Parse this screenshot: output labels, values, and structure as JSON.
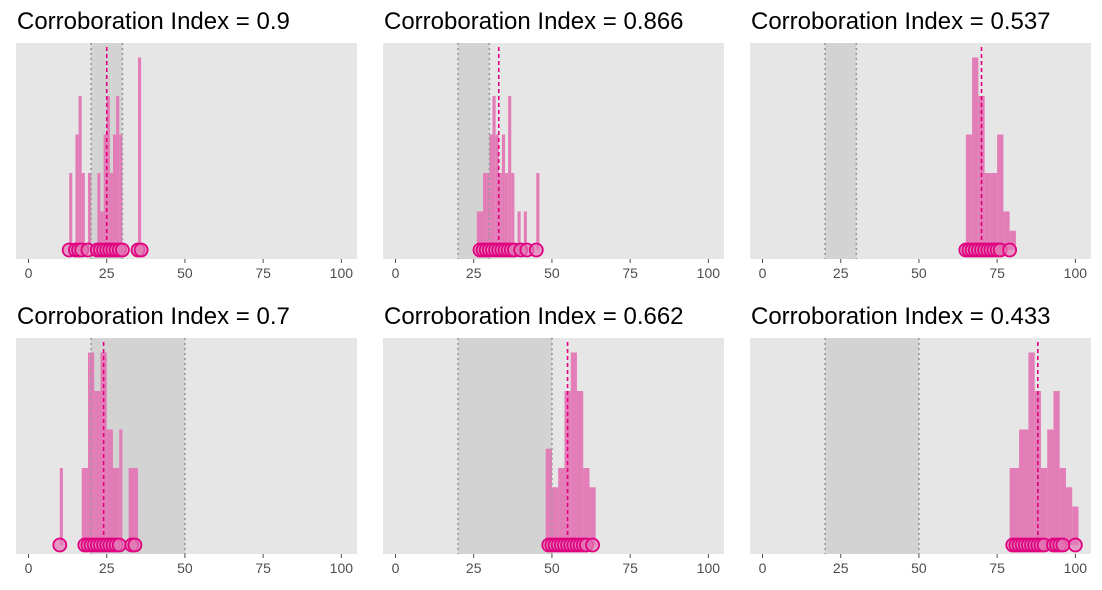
{
  "colors": {
    "panel_background": "#e6e6e6",
    "interval_band": "#d3d3d3",
    "interval_line": "#999999",
    "bar_fill": "#e377b5",
    "point_fill": "#e377b5",
    "point_stroke": "#e0007f",
    "mean_line": "#e0007f",
    "tick_color": "#4d4d4d"
  },
  "chart_data": [
    {
      "type": "histogram",
      "title": "Corroboration Index = 0.9",
      "xlim": [
        -4,
        105
      ],
      "x_ticks": [
        0,
        25,
        50,
        75,
        100
      ],
      "x_tick_labels": [
        "0",
        "25",
        "50",
        "75",
        "100"
      ],
      "grid": false,
      "interval": [
        20,
        30
      ],
      "mean": 25,
      "ylim": [
        0,
        10
      ],
      "bars": [
        {
          "x0": 13,
          "x1": 14,
          "count": 4
        },
        {
          "x0": 15,
          "x1": 16,
          "count": 6
        },
        {
          "x0": 16,
          "x1": 17,
          "count": 8
        },
        {
          "x0": 17,
          "x1": 18,
          "count": 4
        },
        {
          "x0": 19,
          "x1": 20,
          "count": 4
        },
        {
          "x0": 22,
          "x1": 23,
          "count": 4
        },
        {
          "x0": 23,
          "x1": 24,
          "count": 2
        },
        {
          "x0": 24,
          "x1": 25,
          "count": 6
        },
        {
          "x0": 25,
          "x1": 26,
          "count": 8
        },
        {
          "x0": 26,
          "x1": 27,
          "count": 4
        },
        {
          "x0": 27,
          "x1": 28,
          "count": 6
        },
        {
          "x0": 28,
          "x1": 29,
          "count": 8
        },
        {
          "x0": 29,
          "x1": 30,
          "count": 6
        },
        {
          "x0": 35,
          "x1": 36,
          "count": 10
        }
      ],
      "points": [
        13,
        15,
        16,
        17,
        19,
        22,
        23,
        24,
        25,
        26,
        27,
        28,
        29,
        30,
        35,
        36
      ]
    },
    {
      "type": "histogram",
      "title": "Corroboration Index = 0.866",
      "xlim": [
        -4,
        105
      ],
      "x_ticks": [
        0,
        25,
        50,
        75,
        100
      ],
      "x_tick_labels": [
        "0",
        "25",
        "50",
        "75",
        "100"
      ],
      "grid": false,
      "interval": [
        20,
        30
      ],
      "mean": 33,
      "ylim": [
        0,
        10
      ],
      "bars": [
        {
          "x0": 26,
          "x1": 27,
          "count": 2
        },
        {
          "x0": 27,
          "x1": 28,
          "count": 2
        },
        {
          "x0": 28,
          "x1": 29,
          "count": 4
        },
        {
          "x0": 29,
          "x1": 30,
          "count": 4
        },
        {
          "x0": 30,
          "x1": 31,
          "count": 6
        },
        {
          "x0": 31,
          "x1": 32,
          "count": 8
        },
        {
          "x0": 32,
          "x1": 33,
          "count": 6
        },
        {
          "x0": 33,
          "x1": 34,
          "count": 4
        },
        {
          "x0": 34,
          "x1": 35,
          "count": 6
        },
        {
          "x0": 35,
          "x1": 36,
          "count": 4
        },
        {
          "x0": 36,
          "x1": 37,
          "count": 8
        },
        {
          "x0": 37,
          "x1": 38,
          "count": 4
        },
        {
          "x0": 39,
          "x1": 40,
          "count": 2
        },
        {
          "x0": 41,
          "x1": 42,
          "count": 2
        },
        {
          "x0": 45,
          "x1": 46,
          "count": 4
        }
      ],
      "points": [
        27,
        28,
        29,
        30,
        31,
        32,
        33,
        34,
        35,
        36,
        37,
        38,
        40,
        42,
        45
      ]
    },
    {
      "type": "histogram",
      "title": "Corroboration Index = 0.537",
      "xlim": [
        -4,
        105
      ],
      "x_ticks": [
        0,
        25,
        50,
        75,
        100
      ],
      "x_tick_labels": [
        "0",
        "25",
        "50",
        "75",
        "100"
      ],
      "grid": false,
      "interval": [
        20,
        30
      ],
      "mean": 70,
      "ylim": [
        0,
        10
      ],
      "bars": [
        {
          "x0": 65,
          "x1": 67,
          "count": 6
        },
        {
          "x0": 67,
          "x1": 69,
          "count": 10
        },
        {
          "x0": 69,
          "x1": 71,
          "count": 8
        },
        {
          "x0": 71,
          "x1": 73,
          "count": 4
        },
        {
          "x0": 73,
          "x1": 75,
          "count": 4
        },
        {
          "x0": 75,
          "x1": 77,
          "count": 6
        },
        {
          "x0": 77,
          "x1": 79,
          "count": 2
        },
        {
          "x0": 79,
          "x1": 81,
          "count": 1
        }
      ],
      "points": [
        65,
        66,
        67,
        68,
        69,
        70,
        71,
        72,
        73,
        74,
        75,
        76,
        79
      ]
    },
    {
      "type": "histogram",
      "title": "Corroboration Index = 0.7",
      "xlim": [
        -4,
        105
      ],
      "x_ticks": [
        0,
        25,
        50,
        75,
        100
      ],
      "x_tick_labels": [
        "0",
        "25",
        "50",
        "75",
        "100"
      ],
      "grid": false,
      "interval": [
        20,
        50
      ],
      "mean": 24,
      "ylim": [
        0,
        10
      ],
      "bars": [
        {
          "x0": 10,
          "x1": 11,
          "count": 4
        },
        {
          "x0": 17,
          "x1": 19,
          "count": 4
        },
        {
          "x0": 19,
          "x1": 21,
          "count": 10
        },
        {
          "x0": 21,
          "x1": 23,
          "count": 8
        },
        {
          "x0": 23,
          "x1": 25,
          "count": 10
        },
        {
          "x0": 25,
          "x1": 27,
          "count": 6
        },
        {
          "x0": 27,
          "x1": 29,
          "count": 4
        },
        {
          "x0": 29,
          "x1": 30,
          "count": 6
        },
        {
          "x0": 32,
          "x1": 35,
          "count": 4
        }
      ],
      "points": [
        10,
        18,
        19,
        20,
        21,
        22,
        23,
        24,
        25,
        26,
        27,
        28,
        29,
        33,
        34
      ]
    },
    {
      "type": "histogram",
      "title": "Corroboration Index = 0.662",
      "xlim": [
        -4,
        105
      ],
      "x_ticks": [
        0,
        25,
        50,
        75,
        100
      ],
      "x_tick_labels": [
        "0",
        "25",
        "50",
        "75",
        "100"
      ],
      "grid": false,
      "interval": [
        20,
        50
      ],
      "mean": 55,
      "ylim": [
        0,
        10
      ],
      "bars": [
        {
          "x0": 48,
          "x1": 50,
          "count": 5
        },
        {
          "x0": 50,
          "x1": 52,
          "count": 3
        },
        {
          "x0": 52,
          "x1": 54,
          "count": 4
        },
        {
          "x0": 54,
          "x1": 56,
          "count": 8
        },
        {
          "x0": 56,
          "x1": 58,
          "count": 10
        },
        {
          "x0": 58,
          "x1": 60,
          "count": 8
        },
        {
          "x0": 60,
          "x1": 62,
          "count": 4
        },
        {
          "x0": 62,
          "x1": 64,
          "count": 3
        }
      ],
      "points": [
        49,
        50,
        51,
        52,
        53,
        54,
        55,
        56,
        57,
        58,
        59,
        60,
        61,
        63
      ]
    },
    {
      "type": "histogram",
      "title": "Corroboration Index = 0.433",
      "xlim": [
        -4,
        105
      ],
      "x_ticks": [
        0,
        25,
        50,
        75,
        100
      ],
      "x_tick_labels": [
        "0",
        "25",
        "50",
        "75",
        "100"
      ],
      "grid": false,
      "interval": [
        20,
        50
      ],
      "mean": 88,
      "ylim": [
        0,
        10
      ],
      "bars": [
        {
          "x0": 79,
          "x1": 82,
          "count": 4
        },
        {
          "x0": 82,
          "x1": 85,
          "count": 6
        },
        {
          "x0": 85,
          "x1": 87,
          "count": 10
        },
        {
          "x0": 87,
          "x1": 89,
          "count": 8
        },
        {
          "x0": 89,
          "x1": 91,
          "count": 4
        },
        {
          "x0": 91,
          "x1": 93,
          "count": 6
        },
        {
          "x0": 93,
          "x1": 95,
          "count": 8
        },
        {
          "x0": 95,
          "x1": 97,
          "count": 4
        },
        {
          "x0": 97,
          "x1": 99,
          "count": 3
        },
        {
          "x0": 99,
          "x1": 101,
          "count": 2
        }
      ],
      "points": [
        80,
        81,
        82,
        83,
        84,
        85,
        86,
        87,
        88,
        89,
        90,
        93,
        94,
        95,
        96,
        100
      ]
    }
  ]
}
